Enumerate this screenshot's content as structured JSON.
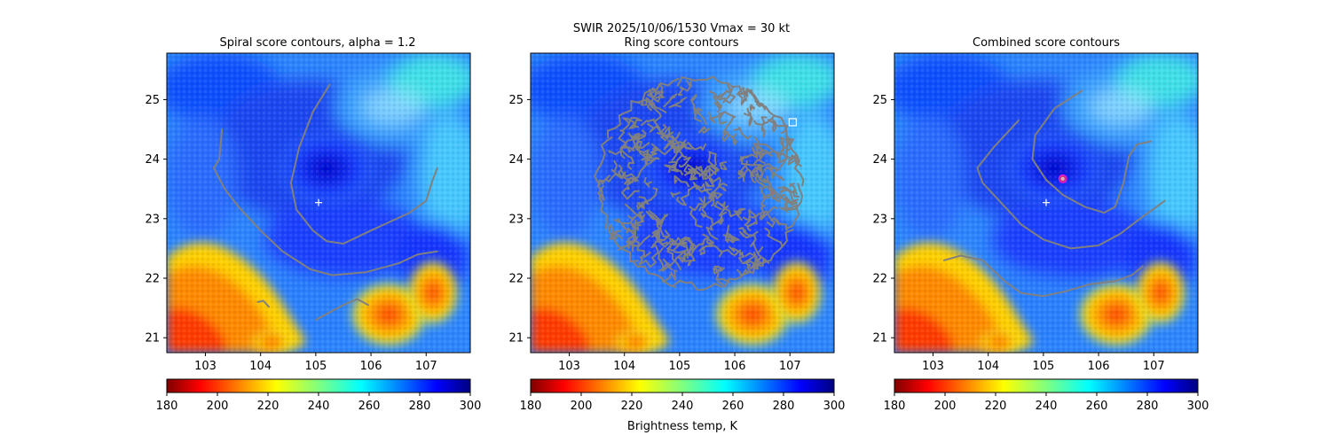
{
  "figure": {
    "suptitle_line1": "SWIR  2025/10/06/1530    Vmax = 30 kt",
    "colorbar_label": "Brightness temp, K"
  },
  "colors": {
    "contour": "#808080",
    "center_marker": "#ffffff",
    "combined_marker_fill": "#cc3377",
    "combined_marker_edge": "#ff00ff"
  },
  "chart_data": [
    {
      "type": "heatmap",
      "title": "Spiral score contours, alpha =  1.2",
      "x_ticks": [
        103,
        104,
        105,
        106,
        107
      ],
      "y_ticks": [
        21,
        22,
        23,
        24,
        25
      ],
      "xlim": [
        102.3,
        107.8
      ],
      "ylim": [
        20.75,
        25.78
      ],
      "colormap": "jet_r",
      "colorbar": {
        "min": 180,
        "max": 300,
        "ticks": [
          180,
          200,
          220,
          240,
          260,
          280,
          300
        ]
      },
      "center_marker": {
        "symbol": "+",
        "lon": 105.05,
        "lat": 23.27
      },
      "contours": [
        [
          [
            105.25,
            25.25
          ],
          [
            104.95,
            24.8
          ],
          [
            104.7,
            24.2
          ],
          [
            104.55,
            23.6
          ],
          [
            104.65,
            23.15
          ],
          [
            104.95,
            22.8
          ],
          [
            105.2,
            22.62
          ],
          [
            105.5,
            22.58
          ],
          [
            106.0,
            22.8
          ],
          [
            106.7,
            23.1
          ],
          [
            107.0,
            23.3
          ],
          [
            107.1,
            23.6
          ],
          [
            107.2,
            23.85
          ]
        ],
        [
          [
            103.3,
            24.5
          ],
          [
            103.25,
            24.0
          ],
          [
            103.15,
            23.85
          ],
          [
            103.35,
            23.5
          ],
          [
            103.6,
            23.2
          ],
          [
            104.0,
            22.8
          ],
          [
            104.4,
            22.45
          ],
          [
            104.9,
            22.15
          ],
          [
            105.3,
            22.05
          ],
          [
            105.9,
            22.1
          ],
          [
            106.5,
            22.25
          ],
          [
            106.85,
            22.4
          ],
          [
            107.2,
            22.45
          ]
        ],
        [
          [
            103.95,
            21.6
          ],
          [
            104.05,
            21.62
          ],
          [
            104.15,
            21.52
          ]
        ],
        [
          [
            105.0,
            21.3
          ],
          [
            105.5,
            21.55
          ],
          [
            105.75,
            21.65
          ],
          [
            105.95,
            21.55
          ]
        ]
      ]
    },
    {
      "type": "heatmap",
      "title": "Ring score contours",
      "x_ticks": [
        103,
        104,
        105,
        106,
        107
      ],
      "y_ticks": [
        21,
        22,
        23,
        24,
        25
      ],
      "xlim": [
        102.3,
        107.8
      ],
      "ylim": [
        20.75,
        25.78
      ],
      "colormap": "jet_r",
      "colorbar": {
        "min": 180,
        "max": 300,
        "ticks": [
          180,
          200,
          220,
          240,
          260,
          280,
          300
        ]
      },
      "ring_region": {
        "center_lon": 105.35,
        "center_lat": 23.6,
        "radius_deg": 1.9
      },
      "square_marker": {
        "lon": 107.05,
        "lat": 24.62
      }
    },
    {
      "type": "heatmap",
      "title": "Combined score contours",
      "x_ticks": [
        103,
        104,
        105,
        106,
        107
      ],
      "y_ticks": [
        21,
        22,
        23,
        24,
        25
      ],
      "xlim": [
        102.3,
        107.8
      ],
      "ylim": [
        20.75,
        25.78
      ],
      "colormap": "jet_r",
      "colorbar": {
        "min": 180,
        "max": 300,
        "ticks": [
          180,
          200,
          220,
          240,
          260,
          280,
          300
        ]
      },
      "center_marker": {
        "symbol": "+",
        "lon": 105.05,
        "lat": 23.27
      },
      "combined_marker": {
        "lon": 105.35,
        "lat": 23.67
      },
      "contours": [
        [
          [
            105.7,
            25.15
          ],
          [
            105.2,
            24.85
          ],
          [
            104.85,
            24.4
          ],
          [
            104.8,
            24.0
          ],
          [
            105.05,
            23.65
          ],
          [
            105.35,
            23.4
          ],
          [
            105.75,
            23.2
          ],
          [
            106.1,
            23.1
          ],
          [
            106.3,
            23.2
          ],
          [
            106.45,
            23.6
          ],
          [
            106.55,
            24.05
          ],
          [
            106.7,
            24.25
          ],
          [
            106.95,
            24.3
          ]
        ],
        [
          [
            104.55,
            24.65
          ],
          [
            104.1,
            24.2
          ],
          [
            103.8,
            23.85
          ],
          [
            103.9,
            23.6
          ],
          [
            104.2,
            23.3
          ],
          [
            104.6,
            22.9
          ],
          [
            105.0,
            22.65
          ],
          [
            105.5,
            22.5
          ],
          [
            106.0,
            22.55
          ],
          [
            106.4,
            22.75
          ],
          [
            106.75,
            23.0
          ],
          [
            107.05,
            23.2
          ],
          [
            107.2,
            23.3
          ]
        ],
        [
          [
            103.2,
            22.3
          ],
          [
            103.5,
            22.38
          ],
          [
            103.9,
            22.3
          ],
          [
            104.3,
            21.95
          ],
          [
            104.6,
            21.75
          ],
          [
            105.0,
            21.7
          ],
          [
            105.4,
            21.78
          ],
          [
            105.85,
            21.9
          ],
          [
            106.3,
            21.95
          ],
          [
            106.6,
            22.05
          ],
          [
            106.8,
            22.2
          ]
        ]
      ]
    }
  ]
}
